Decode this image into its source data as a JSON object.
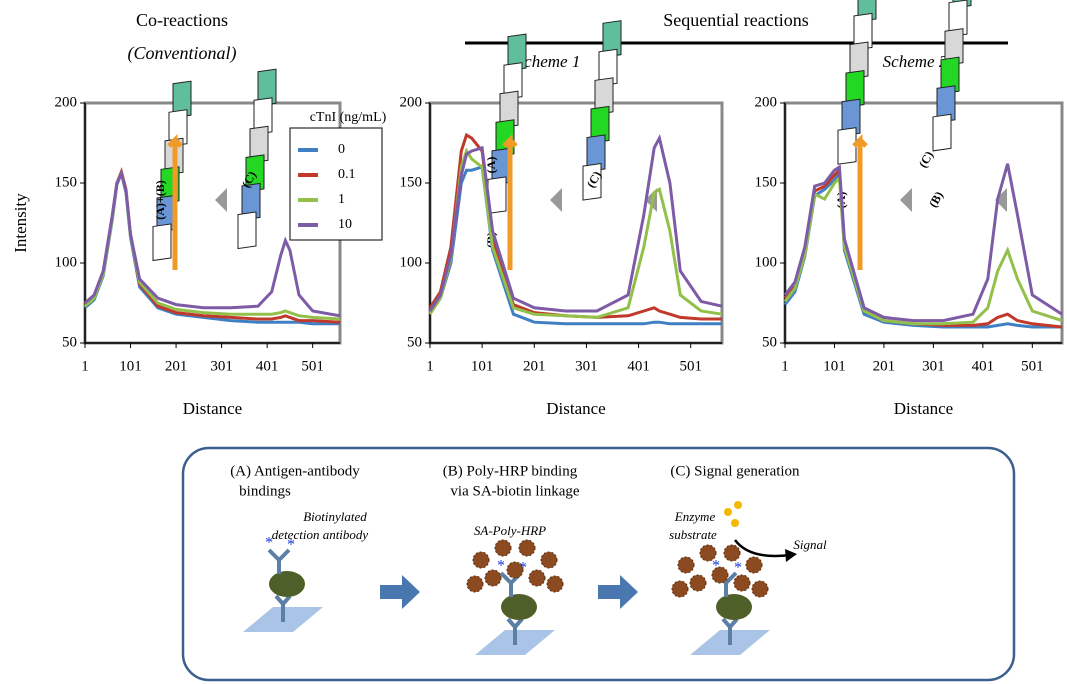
{
  "headers": {
    "co": "Co-reactions",
    "co_sub": "(Conventional)",
    "seq": "Sequential reactions",
    "scheme1": "Scheme 1",
    "scheme2": "Scheme 2"
  },
  "insets": [
    [
      "(A)+(B)",
      "(C)"
    ],
    [
      "(A)",
      "(B)",
      "(C)"
    ],
    [
      "(A)",
      "(C)",
      "(B)"
    ]
  ],
  "chart_data": [
    {
      "type": "line",
      "x_label": "Distance",
      "y_label": "Intensity",
      "legend_title": "cTnI (ng/mL)",
      "xlim": [
        1,
        561
      ],
      "ylim": [
        50,
        200
      ],
      "xticks": [
        1,
        101,
        201,
        301,
        401,
        501
      ],
      "yticks": [
        50,
        100,
        150,
        200
      ],
      "x": [
        1,
        21,
        41,
        61,
        71,
        81,
        91,
        101,
        121,
        161,
        201,
        261,
        321,
        381,
        411,
        431,
        441,
        451,
        471,
        501,
        561
      ],
      "series": [
        {
          "name": "0",
          "color": "#3f7fc4",
          "values": [
            72,
            77,
            92,
            127,
            149,
            156,
            144,
            116,
            85,
            72,
            68,
            66,
            64,
            63,
            63,
            63,
            63,
            63,
            63,
            62,
            62
          ]
        },
        {
          "name": "0.1",
          "color": "#c0392b",
          "values": [
            74,
            79,
            94,
            129,
            150,
            157,
            146,
            118,
            87,
            73,
            69,
            67,
            66,
            65,
            65,
            66,
            67,
            66,
            64,
            64,
            63
          ]
        },
        {
          "name": "1",
          "color": "#92c04a",
          "values": [
            73,
            78,
            93,
            128,
            150,
            156,
            145,
            117,
            88,
            75,
            71,
            69,
            68,
            68,
            68,
            69,
            70,
            69,
            67,
            66,
            65
          ]
        },
        {
          "name": "10",
          "color": "#7d5ba6",
          "values": [
            75,
            80,
            95,
            130,
            150,
            156,
            145,
            118,
            90,
            78,
            74,
            72,
            72,
            73,
            82,
            105,
            114,
            108,
            80,
            70,
            67
          ]
        }
      ]
    },
    {
      "type": "line",
      "x_label": "Distance",
      "xlim": [
        1,
        561
      ],
      "ylim": [
        50,
        200
      ],
      "xticks": [
        1,
        101,
        201,
        301,
        401,
        501
      ],
      "yticks": [
        50,
        100,
        150,
        200
      ],
      "x": [
        1,
        21,
        41,
        61,
        71,
        81,
        101,
        121,
        161,
        201,
        261,
        321,
        381,
        411,
        431,
        441,
        461,
        481,
        521,
        561
      ],
      "series": [
        {
          "color": "#3f7fc4",
          "values": [
            69,
            78,
            100,
            150,
            158,
            158,
            160,
            108,
            68,
            63,
            62,
            62,
            62,
            62,
            63,
            63,
            62,
            62,
            62,
            62
          ]
        },
        {
          "color": "#c0392b",
          "values": [
            72,
            82,
            110,
            170,
            180,
            178,
            170,
            115,
            74,
            69,
            67,
            66,
            67,
            70,
            72,
            70,
            68,
            66,
            65,
            65
          ]
        },
        {
          "color": "#92c04a",
          "values": [
            68,
            78,
            103,
            160,
            170,
            165,
            160,
            110,
            72,
            68,
            67,
            66,
            72,
            110,
            144,
            146,
            120,
            80,
            70,
            68
          ]
        },
        {
          "color": "#7d5ba6",
          "values": [
            70,
            80,
            105,
            155,
            168,
            170,
            172,
            120,
            78,
            72,
            70,
            70,
            80,
            130,
            172,
            178,
            150,
            95,
            76,
            73
          ]
        }
      ]
    },
    {
      "type": "line",
      "x_label": "Distance",
      "xlim": [
        1,
        561
      ],
      "ylim": [
        50,
        200
      ],
      "xticks": [
        1,
        101,
        201,
        301,
        401,
        501
      ],
      "yticks": [
        50,
        100,
        150,
        200
      ],
      "x": [
        1,
        21,
        41,
        61,
        81,
        101,
        111,
        121,
        161,
        201,
        261,
        321,
        381,
        411,
        431,
        451,
        471,
        501,
        561
      ],
      "series": [
        {
          "color": "#3f7fc4",
          "values": [
            74,
            82,
            104,
            142,
            146,
            152,
            156,
            108,
            68,
            63,
            61,
            60,
            60,
            60,
            61,
            62,
            61,
            60,
            60
          ]
        },
        {
          "color": "#c0392b",
          "values": [
            78,
            86,
            108,
            145,
            148,
            155,
            158,
            112,
            70,
            64,
            62,
            61,
            61,
            62,
            66,
            68,
            64,
            62,
            60
          ]
        },
        {
          "color": "#92c04a",
          "values": [
            76,
            84,
            105,
            143,
            140,
            150,
            153,
            110,
            70,
            64,
            62,
            62,
            63,
            72,
            95,
            108,
            90,
            70,
            64
          ]
        },
        {
          "color": "#7d5ba6",
          "values": [
            80,
            88,
            110,
            148,
            150,
            158,
            160,
            115,
            72,
            66,
            64,
            64,
            68,
            90,
            140,
            162,
            130,
            80,
            68
          ]
        }
      ]
    }
  ],
  "diagram": {
    "a_title": "(A) Antigen-antibody",
    "a_title2": "bindings",
    "a_note": "Biotinylated",
    "a_note2": "detection antibody",
    "b_title": "(B) Poly-HRP binding",
    "b_title2": "via SA-biotin linkage",
    "b_note": "SA-Poly-HRP",
    "c_title": "(C) Signal generation",
    "c_note": "Enzyme",
    "c_note2": "substrate",
    "c_signal": "Signal"
  }
}
